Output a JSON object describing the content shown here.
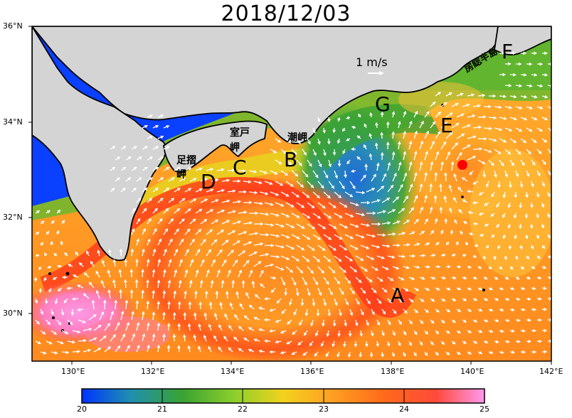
{
  "title": "2018/12/03",
  "map": {
    "lon_range": [
      129,
      142
    ],
    "lat_range": [
      29,
      36
    ],
    "lon_ticks": [
      "130°E",
      "132°E",
      "134°E",
      "136°E",
      "138°E",
      "140°E",
      "142°E"
    ],
    "lat_ticks": [
      "36°N",
      "34°N",
      "32°N",
      "30°N"
    ],
    "scale_label": "1 m/s",
    "labels": {
      "A": "A",
      "B": "B",
      "C": "C",
      "D": "D",
      "E": "E",
      "F": "F",
      "G": "G",
      "shiomisaki": "潮岬",
      "muroto_1": "室戸",
      "muroto_2": "岬",
      "ashizuri_1": "足摺",
      "ashizuri_2": "岬",
      "boso": "房総半島"
    },
    "colors": {
      "land": "#d4d4d4",
      "coast": "#000000",
      "marker": "#ff0000",
      "arrow": "#ffffff"
    }
  },
  "colorbar": {
    "ticks": [
      "20",
      "21",
      "22",
      "23",
      "24",
      "25"
    ],
    "colors": [
      "#0033ff",
      "#1f8fb0",
      "#3aa332",
      "#8dcf2c",
      "#f2d21e",
      "#ff9a22",
      "#ff4a1a",
      "#ff7fbf",
      "#ff99ee"
    ]
  }
}
